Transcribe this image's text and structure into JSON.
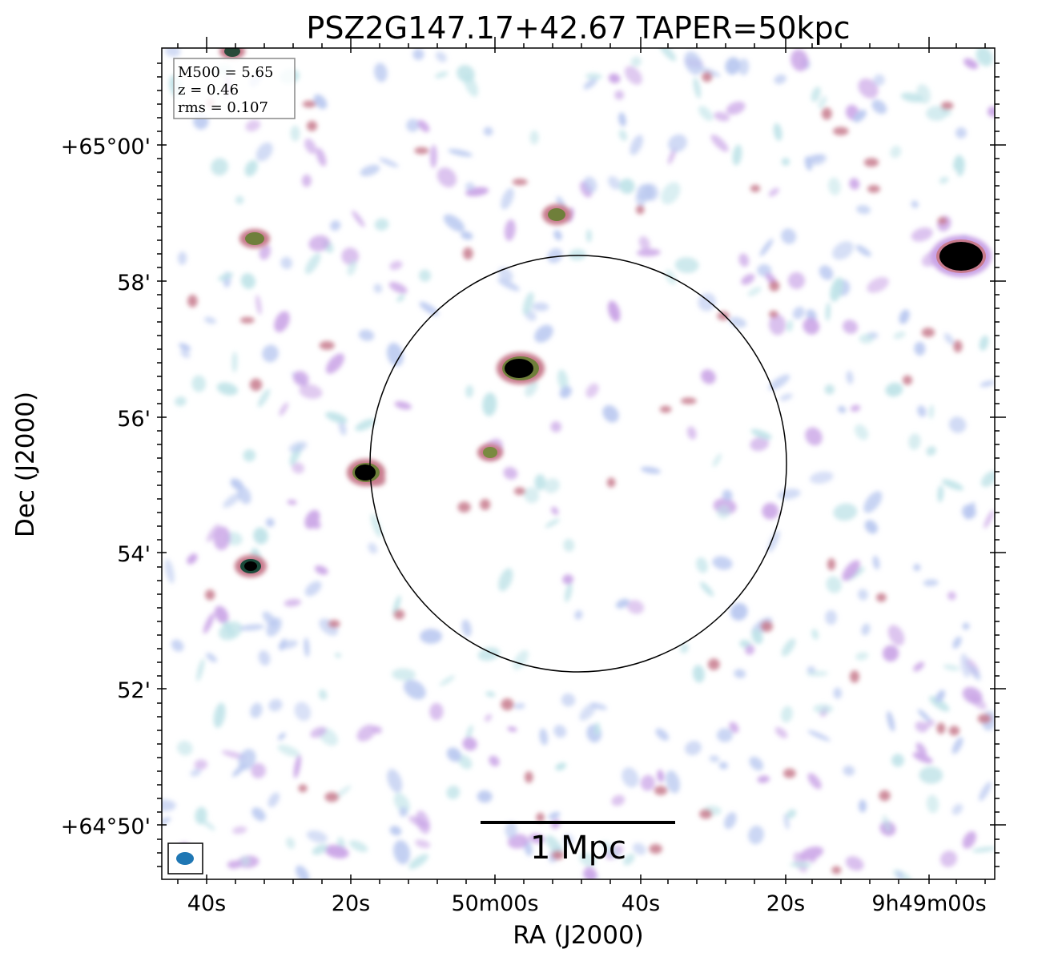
{
  "figure": {
    "title": "PSZ2G147.17+42.67 TAPER=50kpc",
    "xlabel": "RA (J2000)",
    "ylabel": "Dec (J2000)",
    "x_ticks": [
      "40s",
      "20s",
      "50m00s",
      "40s",
      "20s",
      "9h49m00s"
    ],
    "y_ticks": [
      "+65°00'",
      "58'",
      "56'",
      "54'",
      "52'",
      "+64°50'"
    ],
    "info_box": {
      "line1": "M500 = 5.65",
      "line2": "z = 0.46",
      "line3": "rms = 0.107"
    },
    "scalebar_label": "1 Mpc",
    "beam_color": "#1f77b4",
    "colors": {
      "faint": "#bfe3e8",
      "low": "#b9c8f0",
      "mid": "#c9a3e6",
      "high": "#c77a8c",
      "peak": "#6f7f3a",
      "core": "#000000"
    }
  }
}
